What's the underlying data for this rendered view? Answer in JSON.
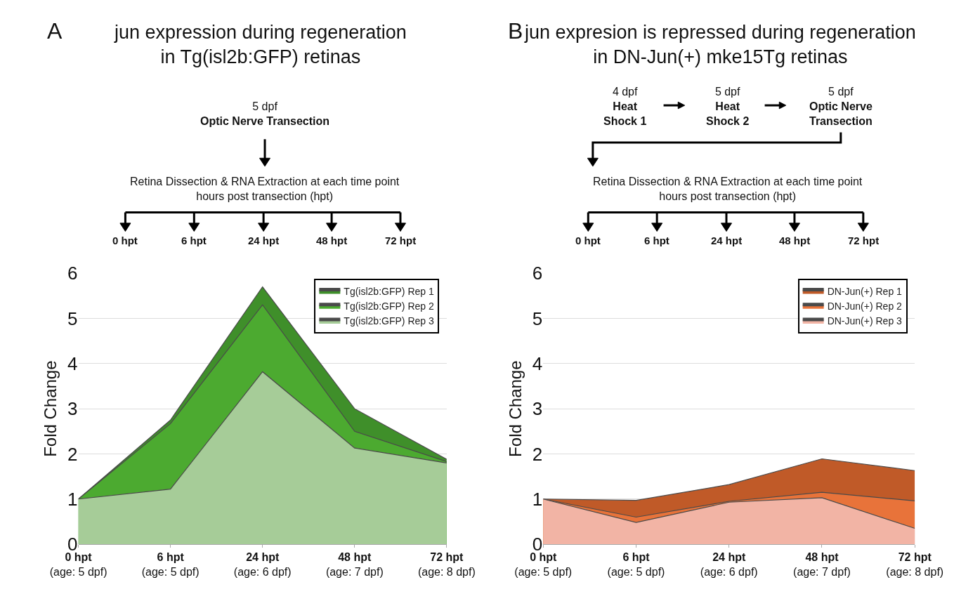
{
  "chart_data": [
    {
      "type": "area",
      "title": "jun expression during regeneration\nin Tg(isl2b:GFP) retinas",
      "ylabel": "Fold Change",
      "categories": [
        "0 hpt\n(age: 5 dpf)",
        "6 hpt\n(age: 5 dpf)",
        "24 hpt\n(age: 6 dpf)",
        "48 hpt\n(age: 7 dpf)",
        "72 hpt\n(age: 8 dpf)"
      ],
      "series": [
        {
          "name": "Tg(isl2b:GFP) Rep 1",
          "color": "#3f8f2a",
          "values": [
            1.0,
            2.75,
            5.7,
            3.0,
            1.88
          ]
        },
        {
          "name": "Tg(isl2b:GFP) Rep 2",
          "color": "#4caa30",
          "values": [
            1.0,
            2.67,
            5.3,
            2.5,
            1.83
          ]
        },
        {
          "name": "Tg(isl2b:GFP) Rep 3",
          "color": "#a6cc98",
          "values": [
            1.0,
            1.22,
            3.82,
            2.13,
            1.8
          ]
        }
      ],
      "ylim": [
        0,
        6
      ],
      "yticks": [
        0,
        1,
        2,
        3,
        4,
        5,
        6
      ],
      "grid": "y",
      "legend": "top right",
      "marker": "none",
      "annotations": [
        "A",
        "5 dpf\nOptic Nerve Transection",
        "Retina Dissection & RNA Extraction at each time point\nhours post transection (hpt)",
        "0 hpt",
        "6 hpt",
        "24 hpt",
        "48 hpt",
        "72 hpt"
      ]
    },
    {
      "type": "area",
      "title": "jun expresion is repressed during regeneration\nin DN-Jun(+) mke15Tg retinas",
      "ylabel": "Fold Change",
      "categories": [
        "0 hpt\n(age: 5 dpf)",
        "6 hpt\n(age: 5 dpf)",
        "24 hpt\n(age: 6 dpf)",
        "48 hpt\n(age: 7 dpf)",
        "72 hpt\n(age: 8 dpf)"
      ],
      "series": [
        {
          "name": "DN-Jun(+) Rep 1",
          "color": "#c05a28",
          "values": [
            1.0,
            0.97,
            1.32,
            1.89,
            1.63
          ]
        },
        {
          "name": "DN-Jun(+) Rep 2",
          "color": "#e8733a",
          "values": [
            1.0,
            0.6,
            0.95,
            1.15,
            0.96
          ]
        },
        {
          "name": "DN-Jun(+) Rep 3",
          "color": "#f2b4a5",
          "values": [
            1.0,
            0.48,
            0.93,
            1.03,
            0.35
          ]
        }
      ],
      "ylim": [
        0,
        6
      ],
      "yticks": [
        0,
        1,
        2,
        3,
        4,
        5,
        6
      ],
      "grid": "y",
      "legend": "top right",
      "marker": "none",
      "annotations": [
        "B",
        "4 dpf\nHeat\nShock 1",
        "5 dpf\nHeat\nShock 2",
        "5 dpf\nOptic Nerve\nTransection",
        "Retina Dissection & RNA Extraction at each time point\nhours post transection (hpt)",
        "0 hpt",
        "6 hpt",
        "24 hpt",
        "48 hpt",
        "72 hpt"
      ]
    }
  ]
}
